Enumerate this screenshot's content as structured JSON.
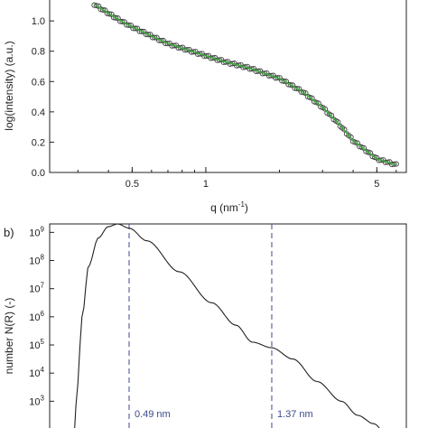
{
  "chart_data": [
    {
      "type": "scatter",
      "panel_label": "",
      "xlabel": "q (nm",
      "xlabel_sup": "-1",
      "xlabel_close": ")",
      "ylabel": "log(intensity) (a.u.)",
      "xscale": "log",
      "xlim": [
        0.23,
        6.6
      ],
      "ylim": [
        0,
        1.15
      ],
      "x_ticks": [
        0.5,
        1,
        5
      ],
      "x_tick_labels": [
        "0.5",
        "1",
        "5"
      ],
      "y_ticks": [
        0.0,
        0.2,
        0.4,
        0.6,
        0.8,
        1.0
      ],
      "y_tick_labels": [
        "0.0",
        "0.2",
        "0.4",
        "0.6",
        "0.8",
        "1.0"
      ],
      "grid": false,
      "series": [
        {
          "marker": "open-circle",
          "color": "#444444",
          "x": [
            0.35,
            0.4,
            0.45,
            0.5,
            0.6,
            0.7,
            0.8,
            1.0,
            1.2,
            1.5,
            2.0,
            2.5,
            3.0,
            3.5,
            4.0,
            5.0,
            6.0
          ],
          "y": [
            1.11,
            1.05,
            1.0,
            0.96,
            0.9,
            0.85,
            0.82,
            0.77,
            0.73,
            0.69,
            0.62,
            0.53,
            0.43,
            0.32,
            0.21,
            0.09,
            0.05
          ]
        },
        {
          "marker": "line",
          "color": "#3daa3d",
          "x": [
            0.35,
            0.4,
            0.45,
            0.5,
            0.6,
            0.7,
            0.8,
            1.0,
            1.2,
            1.5,
            2.0,
            2.5,
            3.0,
            3.5,
            4.0,
            5.0,
            6.0
          ],
          "y": [
            1.11,
            1.05,
            1.0,
            0.96,
            0.9,
            0.85,
            0.82,
            0.77,
            0.73,
            0.69,
            0.62,
            0.53,
            0.43,
            0.32,
            0.21,
            0.09,
            0.05
          ]
        }
      ]
    },
    {
      "type": "line",
      "panel_label": "b)",
      "xlabel": "",
      "ylabel": "number N(R) (-)",
      "yscale": "log",
      "ylim_exp": [
        1.6,
        9.3
      ],
      "xlim": [
        0,
        2.2
      ],
      "y_ticks_exp": [
        3,
        4,
        5,
        6,
        7,
        8,
        9
      ],
      "grid": false,
      "series": [
        {
          "color": "#222222",
          "x": [
            0.15,
            0.17,
            0.2,
            0.24,
            0.3,
            0.36,
            0.42,
            0.49,
            0.6,
            0.8,
            1.0,
            1.15,
            1.25,
            1.37,
            1.5,
            1.65,
            1.8,
            1.9,
            2.0,
            2.1
          ],
          "log10_y": [
            1.6,
            3.5,
            6.0,
            7.8,
            8.8,
            9.2,
            9.3,
            9.15,
            8.7,
            7.6,
            6.5,
            5.7,
            5.1,
            4.9,
            4.5,
            3.7,
            3.0,
            2.5,
            2.2,
            1.6
          ]
        }
      ],
      "annotations": [
        {
          "x": 0.49,
          "text": "0.49 nm",
          "style": "dashed-vertical",
          "color": "#3b4a8c"
        },
        {
          "x": 1.37,
          "text": "1.37 nm",
          "style": "dashed-vertical",
          "color": "#3b4a8c"
        }
      ]
    }
  ]
}
